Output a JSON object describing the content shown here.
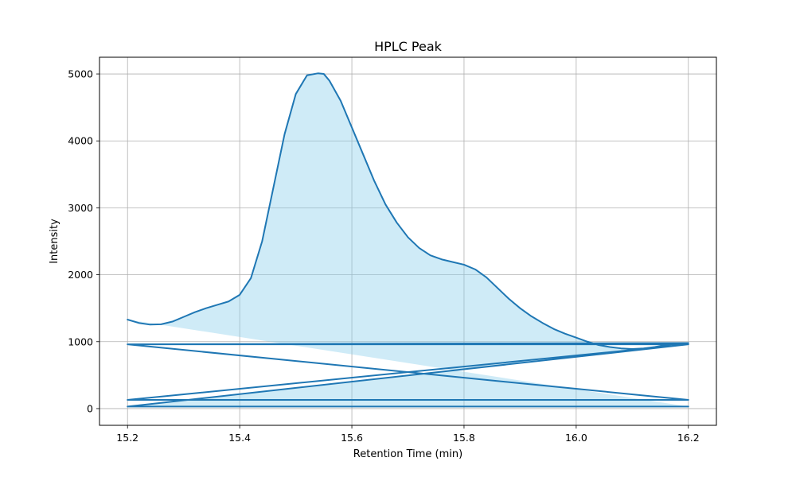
{
  "chart_data": {
    "type": "area",
    "title": "HPLC Peak",
    "xlabel": "Retention Time (min)",
    "ylabel": "Intensity",
    "xlim": [
      15.15,
      16.25
    ],
    "ylim": [
      -250,
      5250
    ],
    "xticks": [
      15.2,
      15.4,
      15.6,
      15.8,
      16.0,
      16.2
    ],
    "xtick_labels": [
      "15.2",
      "15.4",
      "15.6",
      "15.8",
      "16.0",
      "16.2"
    ],
    "yticks": [
      0,
      1000,
      2000,
      3000,
      4000,
      5000
    ],
    "ytick_labels": [
      "0",
      "1000",
      "2000",
      "3000",
      "4000",
      "5000"
    ],
    "grid": true,
    "colors": {
      "line": "#1f77b4",
      "fill": "#87ceeb"
    },
    "series": [
      {
        "x": [
          15.2,
          15.22,
          15.24,
          15.26,
          15.28,
          15.3,
          15.32,
          15.34,
          15.36,
          15.38,
          15.4,
          15.42,
          15.44,
          15.46,
          15.48,
          15.5,
          15.52,
          15.54,
          15.55,
          15.56,
          15.58,
          15.6,
          15.62,
          15.64,
          15.66,
          15.68,
          15.7,
          15.72,
          15.74,
          15.76,
          15.78,
          15.8,
          15.82,
          15.84,
          15.86,
          15.88,
          15.9,
          15.92,
          15.94,
          15.96,
          15.98,
          16.0,
          16.02,
          16.04,
          16.06,
          16.08,
          16.1,
          16.12,
          16.14,
          16.16,
          16.18,
          16.2,
          15.2,
          16.2,
          15.2,
          16.2,
          15.2,
          16.2,
          15.2,
          16.2,
          15.2,
          16.2
        ],
        "y": [
          1330,
          1280,
          1255,
          1260,
          1300,
          1370,
          1440,
          1500,
          1550,
          1600,
          1700,
          1950,
          2500,
          3300,
          4100,
          4700,
          4980,
          5010,
          5000,
          4900,
          4600,
          4200,
          3800,
          3400,
          3050,
          2780,
          2560,
          2400,
          2290,
          2230,
          2190,
          2150,
          2080,
          1960,
          1800,
          1640,
          1500,
          1380,
          1280,
          1190,
          1120,
          1060,
          1000,
          950,
          920,
          900,
          890,
          900,
          920,
          950,
          970,
          980,
          960,
          960,
          130,
          130,
          960,
          130,
          130,
          960,
          30,
          30
        ]
      }
    ]
  }
}
